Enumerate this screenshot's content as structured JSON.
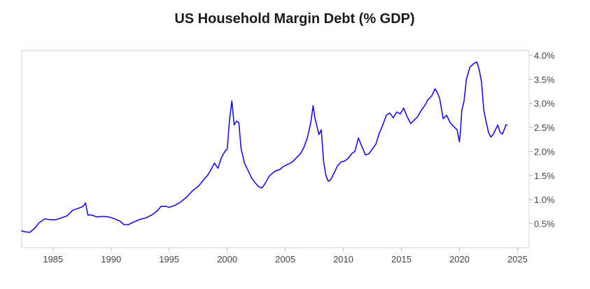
{
  "chart_data": {
    "type": "line",
    "title": "US Household Margin Debt (% GDP)",
    "xlabel": "",
    "ylabel": "",
    "xlim": [
      1982.3,
      2026.0
    ],
    "ylim": [
      0.0,
      4.1
    ],
    "x_ticks": [
      1985,
      1990,
      1995,
      2000,
      2005,
      2010,
      2015,
      2020,
      2025
    ],
    "x_tick_labels": [
      "1985",
      "1990",
      "1995",
      "2000",
      "2005",
      "2010",
      "2015",
      "2020",
      "2025"
    ],
    "y_ticks": [
      0.5,
      1.0,
      1.5,
      2.0,
      2.5,
      3.0,
      3.5,
      4.0
    ],
    "y_tick_labels": [
      "0.5%",
      "1.0%",
      "1.5%",
      "2.0%",
      "2.5%",
      "3.0%",
      "3.5%",
      "4.0%"
    ],
    "y_axis_side": "right",
    "line_color": "#1a12d6",
    "series": [
      {
        "name": "US Household Margin Debt (% GDP)",
        "x": [
          1982.3,
          1982.6,
          1983.0,
          1983.4,
          1983.8,
          1984.3,
          1984.8,
          1985.2,
          1985.7,
          1986.2,
          1986.7,
          1987.2,
          1987.6,
          1987.8,
          1988.0,
          1988.3,
          1988.8,
          1989.3,
          1989.8,
          1990.3,
          1990.8,
          1991.1,
          1991.5,
          1992.0,
          1992.5,
          1993.0,
          1993.5,
          1994.0,
          1994.3,
          1994.7,
          1995.0,
          1995.5,
          1996.0,
          1996.5,
          1997.0,
          1997.5,
          1998.0,
          1998.3,
          1998.6,
          1998.9,
          1999.2,
          1999.5,
          1999.8,
          2000.0,
          2000.2,
          2000.4,
          2000.6,
          2000.8,
          2001.0,
          2001.2,
          2001.5,
          2001.8,
          2002.1,
          2002.4,
          2002.7,
          2003.0,
          2003.3,
          2003.6,
          2003.9,
          2004.2,
          2004.5,
          2004.8,
          2005.1,
          2005.4,
          2005.7,
          2006.0,
          2006.3,
          2006.6,
          2006.9,
          2007.2,
          2007.4,
          2007.55,
          2007.7,
          2007.9,
          2008.1,
          2008.3,
          2008.5,
          2008.7,
          2008.85,
          2009.0,
          2009.2,
          2009.5,
          2009.8,
          2010.1,
          2010.4,
          2010.7,
          2011.0,
          2011.3,
          2011.6,
          2011.9,
          2012.2,
          2012.5,
          2012.8,
          2013.1,
          2013.4,
          2013.7,
          2014.0,
          2014.3,
          2014.6,
          2014.9,
          2015.2,
          2015.5,
          2015.8,
          2016.1,
          2016.4,
          2016.7,
          2017.0,
          2017.3,
          2017.6,
          2017.9,
          2018.1,
          2018.3,
          2018.6,
          2018.9,
          2019.2,
          2019.5,
          2019.8,
          2020.0,
          2020.1,
          2020.2,
          2020.4,
          2020.6,
          2020.9,
          2021.2,
          2021.5,
          2021.7,
          2021.9,
          2022.1,
          2022.3,
          2022.5,
          2022.7,
          2022.9,
          2023.1,
          2023.3,
          2023.5,
          2023.7,
          2023.9,
          2024.0,
          2024.1
        ],
        "y": [
          0.35,
          0.33,
          0.32,
          0.4,
          0.52,
          0.6,
          0.58,
          0.58,
          0.62,
          0.66,
          0.78,
          0.82,
          0.86,
          0.93,
          0.68,
          0.68,
          0.64,
          0.65,
          0.64,
          0.6,
          0.55,
          0.48,
          0.48,
          0.54,
          0.59,
          0.62,
          0.68,
          0.77,
          0.86,
          0.86,
          0.84,
          0.88,
          0.95,
          1.05,
          1.18,
          1.27,
          1.42,
          1.5,
          1.62,
          1.76,
          1.65,
          1.87,
          2.0,
          2.05,
          2.65,
          3.05,
          2.55,
          2.63,
          2.6,
          2.05,
          1.75,
          1.6,
          1.45,
          1.35,
          1.27,
          1.24,
          1.35,
          1.48,
          1.55,
          1.6,
          1.62,
          1.68,
          1.72,
          1.75,
          1.8,
          1.88,
          1.95,
          2.08,
          2.28,
          2.6,
          2.95,
          2.7,
          2.55,
          2.35,
          2.45,
          1.8,
          1.5,
          1.38,
          1.4,
          1.45,
          1.55,
          1.7,
          1.78,
          1.8,
          1.85,
          1.95,
          2.0,
          2.28,
          2.1,
          1.93,
          1.95,
          2.05,
          2.15,
          2.38,
          2.55,
          2.75,
          2.8,
          2.7,
          2.82,
          2.78,
          2.9,
          2.72,
          2.58,
          2.65,
          2.72,
          2.85,
          2.95,
          3.08,
          3.15,
          3.3,
          3.22,
          3.1,
          2.68,
          2.75,
          2.6,
          2.52,
          2.45,
          2.2,
          2.45,
          2.85,
          3.05,
          3.5,
          3.75,
          3.82,
          3.86,
          3.7,
          3.45,
          2.85,
          2.62,
          2.4,
          2.3,
          2.35,
          2.45,
          2.55,
          2.4,
          2.36,
          2.48,
          2.55,
          2.55
        ]
      }
    ]
  }
}
